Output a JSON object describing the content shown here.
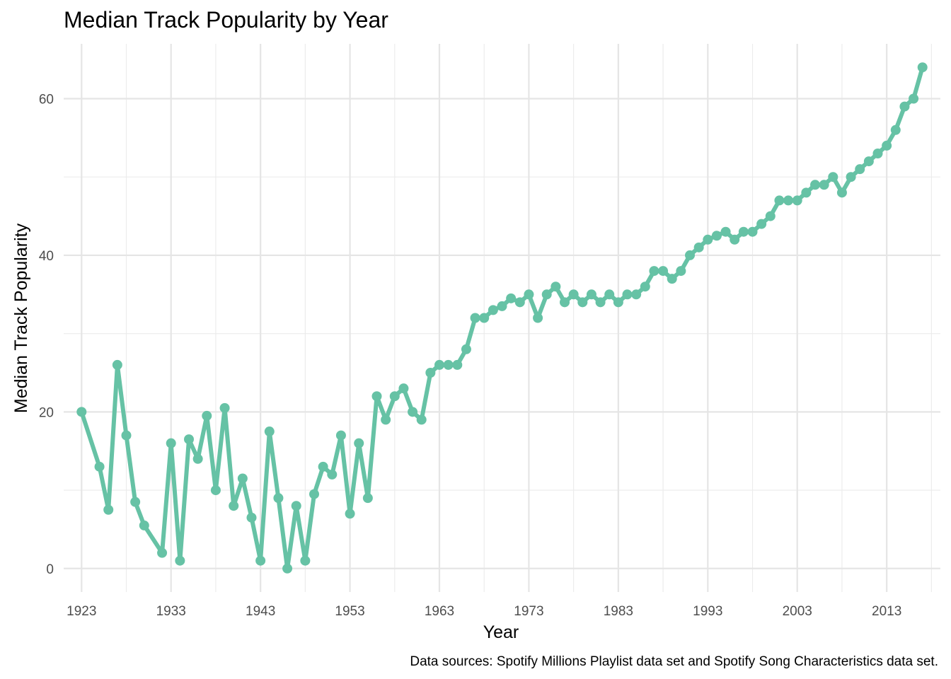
{
  "chart_data": {
    "type": "line",
    "title": "Median Track Popularity by Year",
    "xlabel": "Year",
    "ylabel": "Median Track Popularity",
    "caption": "Data sources: Spotify Millions Playlist data set and Spotify Song Characteristics data set.",
    "xlim": [
      1921,
      2019
    ],
    "ylim": [
      -3,
      67
    ],
    "x_ticks": [
      1923,
      1933,
      1943,
      1953,
      1963,
      1973,
      1983,
      1993,
      2003,
      2013
    ],
    "x_tick_labels": [
      "1923",
      "1933",
      "1943",
      "1953",
      "1963",
      "1973",
      "1983",
      "1993",
      "2003",
      "2013"
    ],
    "x_minor_ticks": [
      1928,
      1938,
      1948,
      1958,
      1968,
      1978,
      1988,
      1998,
      2008,
      2018
    ],
    "y_ticks": [
      0,
      20,
      40,
      60
    ],
    "y_tick_labels": [
      "0",
      "20",
      "40",
      "60"
    ],
    "y_minor_ticks": [
      10,
      30,
      50
    ],
    "grid": true,
    "line_color": "#66c2a5",
    "series": [
      {
        "x": [
          1923,
          1925,
          1926,
          1927,
          1928,
          1929,
          1930,
          1932,
          1933,
          1934,
          1935,
          1936,
          1937,
          1938,
          1939,
          1940,
          1941,
          1942,
          1943,
          1944,
          1945,
          1946,
          1947,
          1948,
          1949,
          1950,
          1951,
          1952,
          1953,
          1954,
          1955,
          1956,
          1957,
          1958,
          1959,
          1960,
          1961,
          1962,
          1963,
          1964,
          1965,
          1966,
          1967,
          1968,
          1969,
          1970,
          1971,
          1972,
          1973,
          1974,
          1975,
          1976,
          1977,
          1978,
          1979,
          1980,
          1981,
          1982,
          1983,
          1984,
          1985,
          1986,
          1987,
          1988,
          1989,
          1990,
          1991,
          1992,
          1993,
          1994,
          1995,
          1996,
          1997,
          1998,
          1999,
          2000,
          2001,
          2002,
          2003,
          2004,
          2005,
          2006,
          2007,
          2008,
          2009,
          2010,
          2011,
          2012,
          2013,
          2014,
          2015,
          2016,
          2017
        ],
        "y": [
          20,
          13,
          7.5,
          26,
          17,
          8.5,
          5.5,
          2,
          16,
          1,
          16.5,
          14,
          19.5,
          10,
          20.5,
          8,
          11.5,
          6.5,
          1,
          17.5,
          9,
          0,
          8,
          1,
          9.5,
          13,
          12,
          17,
          7,
          16,
          9,
          22,
          19,
          22,
          23,
          20,
          19,
          25,
          26,
          26,
          26,
          28,
          32,
          32,
          33,
          33.5,
          34.5,
          34,
          35,
          32,
          35,
          36,
          34,
          35,
          34,
          35,
          34,
          35,
          34,
          35,
          35,
          36,
          38,
          38,
          37,
          38,
          40,
          41,
          42,
          42.5,
          43,
          42,
          43,
          43,
          44,
          45,
          47,
          47,
          47,
          48,
          49,
          49,
          50,
          48,
          50,
          51,
          52,
          53,
          54,
          56,
          59,
          60,
          64
        ]
      }
    ]
  }
}
